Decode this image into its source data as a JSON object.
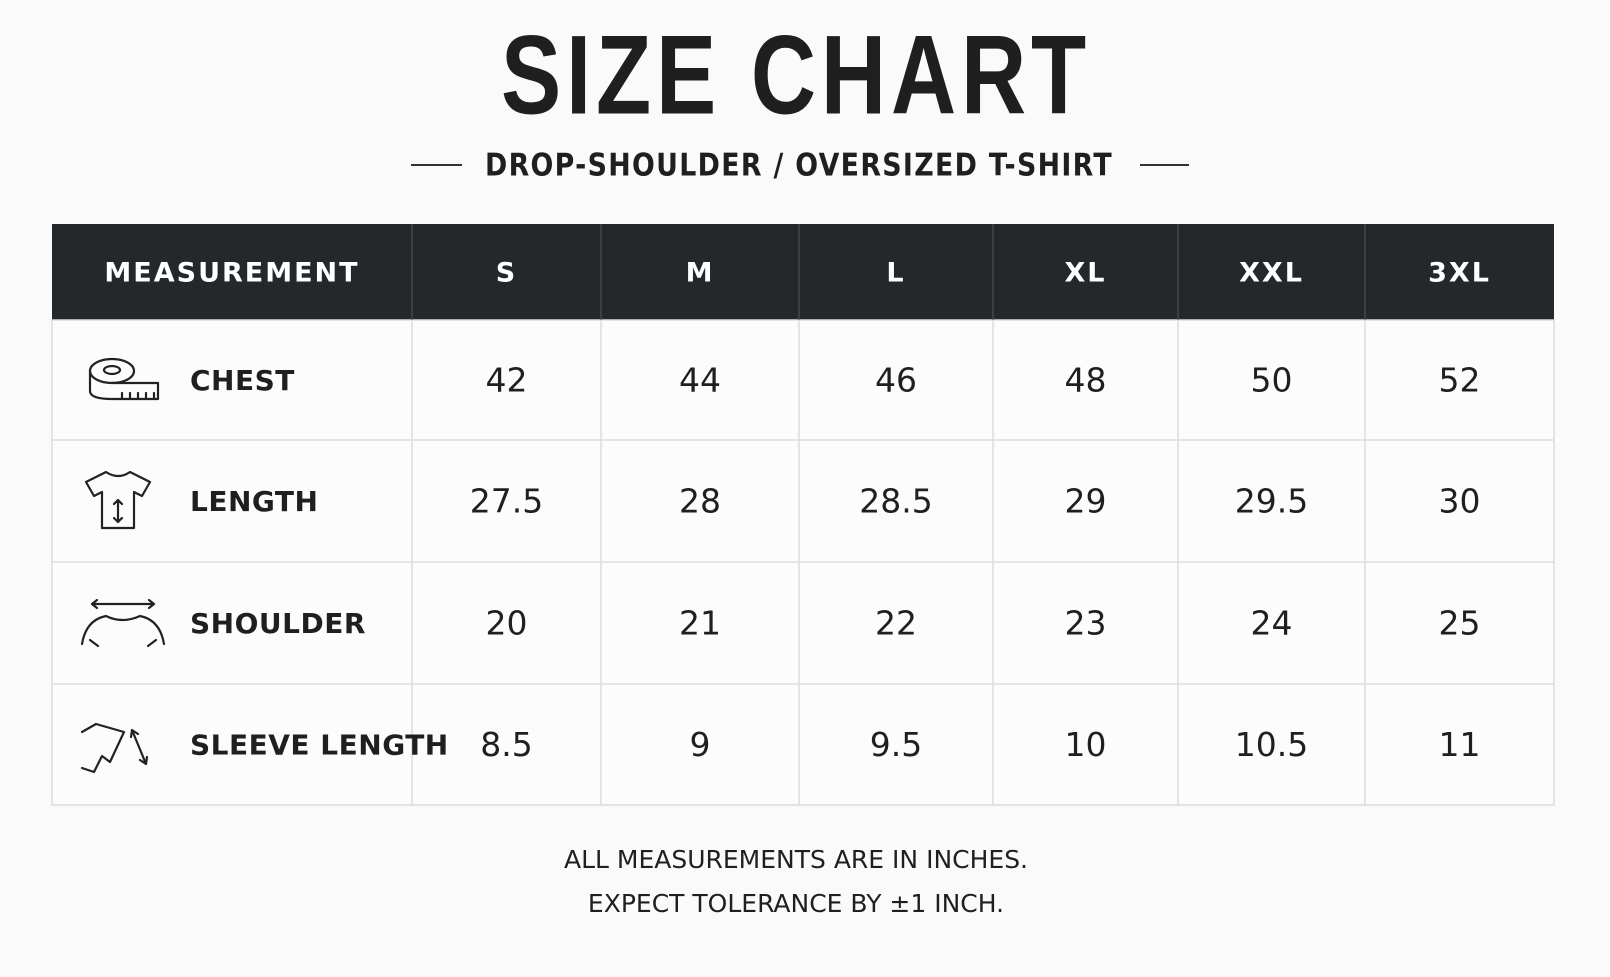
{
  "header": {
    "title": "SIZE CHART",
    "subtitle": "DROP-SHOULDER / OVERSIZED T-SHIRT"
  },
  "table": {
    "columns": [
      "MEASUREMENT",
      "S",
      "M",
      "L",
      "XL",
      "XXL",
      "3XL"
    ],
    "rows": [
      [
        "CHEST",
        "42",
        "44",
        "46",
        "48",
        "50",
        "52"
      ],
      [
        "LENGTH",
        "27.5",
        "28",
        "28.5",
        "29",
        "29.5",
        "30"
      ],
      [
        "SHOULDER",
        "20",
        "21",
        "22",
        "23",
        "24",
        "25"
      ],
      [
        "SLEEVE LENGTH",
        "8.5",
        "9",
        "9.5",
        "10",
        "10.5",
        "11"
      ]
    ]
  },
  "footer": {
    "lines": [
      "ALL MEASUREMENTS ARE IN INCHES.",
      "EXPECT TOLERANCE BY ±1 INCH."
    ]
  }
}
